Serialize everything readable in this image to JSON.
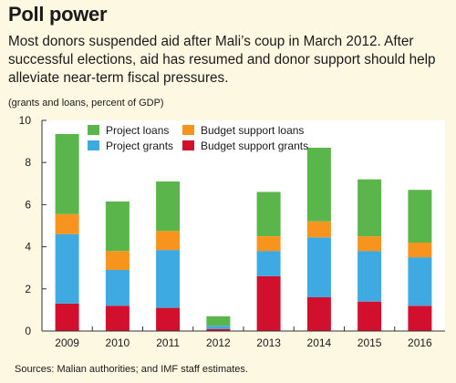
{
  "header": {
    "title": "Poll power",
    "subtitle": "Most donors suspended aid after Mali’s coup in March 2012. After successful elections, aid has resumed and donor support should help alleviate near-term fiscal pressures."
  },
  "footer": {
    "source": "Sources: Malian authorities; and IMF staff estimates."
  },
  "chart_data": {
    "type": "bar",
    "stacked": true,
    "ylabel": "(grants and loans, percent of GDP)",
    "ylim": [
      0,
      10
    ],
    "yticks": [
      0,
      2,
      4,
      6,
      8,
      10
    ],
    "grid": false,
    "legend_position": "top-left",
    "categories": [
      "2009",
      "2010",
      "2011",
      "2012",
      "2013",
      "2014",
      "2015",
      "2016"
    ],
    "series": [
      {
        "name": "Budget support grants",
        "color": "#d2102e",
        "values": [
          1.3,
          1.2,
          1.1,
          0.1,
          2.6,
          1.6,
          1.4,
          1.2
        ]
      },
      {
        "name": "Project grants",
        "color": "#3fa9e1",
        "values": [
          3.3,
          1.7,
          2.75,
          0.15,
          1.2,
          2.85,
          2.4,
          2.3
        ]
      },
      {
        "name": "Budget support loans",
        "color": "#f7941d",
        "values": [
          0.95,
          0.9,
          0.9,
          0.0,
          0.7,
          0.75,
          0.7,
          0.7
        ]
      },
      {
        "name": "Project loans",
        "color": "#5ab54a",
        "values": [
          3.8,
          2.35,
          2.35,
          0.45,
          2.1,
          3.5,
          2.7,
          2.5
        ]
      }
    ],
    "legend_order": [
      "Project loans",
      "Budget support loans",
      "Project grants",
      "Budget support grants"
    ]
  }
}
